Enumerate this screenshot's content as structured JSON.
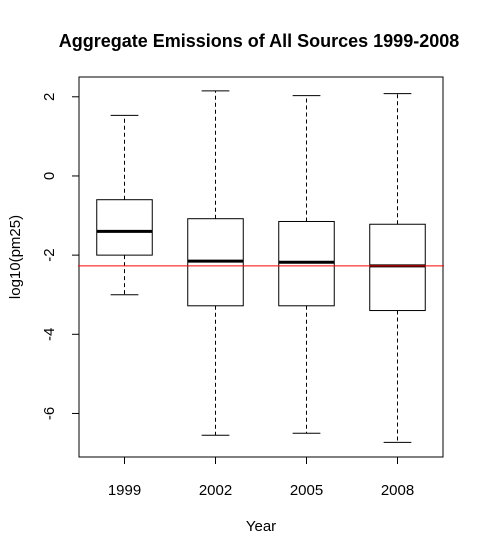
{
  "chart_data": {
    "type": "boxplot",
    "title": "Aggregate Emissions of All Sources 1999-2008",
    "xlabel": "Year",
    "ylabel": "log10(pm25)",
    "categories": [
      "1999",
      "2002",
      "2005",
      "2008"
    ],
    "ylim": [
      -7.1,
      2.5
    ],
    "yticks": [
      2,
      0,
      -2,
      -4,
      -6
    ],
    "ytick_labels": [
      "2",
      "0",
      "-2",
      "-4",
      "-6"
    ],
    "boxes": [
      {
        "category": "1999",
        "whisker_low": -3.0,
        "q1": -2.0,
        "median": -1.4,
        "q3": -0.6,
        "whisker_high": 1.53
      },
      {
        "category": "2002",
        "whisker_low": -6.55,
        "q1": -3.28,
        "median": -2.15,
        "q3": -1.08,
        "whisker_high": 2.15
      },
      {
        "category": "2005",
        "whisker_low": -6.5,
        "q1": -3.28,
        "median": -2.18,
        "q3": -1.15,
        "whisker_high": 2.03
      },
      {
        "category": "2008",
        "whisker_low": -6.73,
        "q1": -3.4,
        "median": -2.27,
        "q3": -1.22,
        "whisker_high": 2.08
      }
    ],
    "reference_line": {
      "y": -2.27,
      "color": "#ff0000"
    },
    "grid": false,
    "legend": "none"
  }
}
